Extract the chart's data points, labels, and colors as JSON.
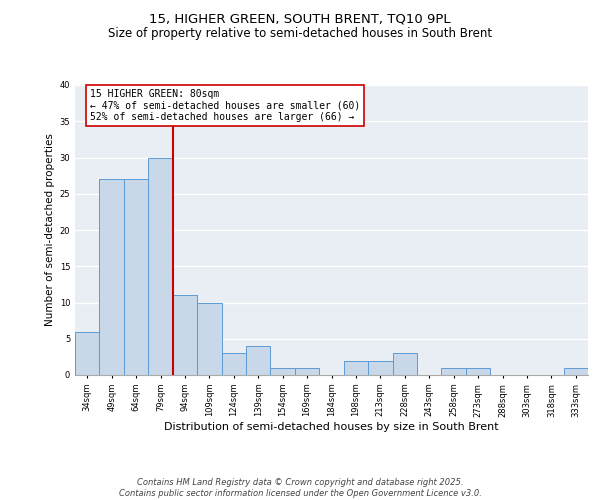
{
  "title": "15, HIGHER GREEN, SOUTH BRENT, TQ10 9PL",
  "subtitle": "Size of property relative to semi-detached houses in South Brent",
  "xlabel": "Distribution of semi-detached houses by size in South Brent",
  "ylabel": "Number of semi-detached properties",
  "categories": [
    "34sqm",
    "49sqm",
    "64sqm",
    "79sqm",
    "94sqm",
    "109sqm",
    "124sqm",
    "139sqm",
    "154sqm",
    "169sqm",
    "184sqm",
    "198sqm",
    "213sqm",
    "228sqm",
    "243sqm",
    "258sqm",
    "273sqm",
    "288sqm",
    "303sqm",
    "318sqm",
    "333sqm"
  ],
  "values": [
    6,
    27,
    27,
    30,
    11,
    10,
    3,
    4,
    1,
    1,
    0,
    2,
    2,
    3,
    0,
    1,
    1,
    0,
    0,
    0,
    1
  ],
  "bar_color": "#c8d8e8",
  "bar_edge_color": "#5b9bd5",
  "vline_color": "#cc0000",
  "annotation_text": "15 HIGHER GREEN: 80sqm\n← 47% of semi-detached houses are smaller (60)\n52% of semi-detached houses are larger (66) →",
  "annotation_box_color": "#cc0000",
  "ylim": [
    0,
    40
  ],
  "yticks": [
    0,
    5,
    10,
    15,
    20,
    25,
    30,
    35,
    40
  ],
  "background_color": "#e8eef4",
  "grid_color": "#ffffff",
  "footer_text": "Contains HM Land Registry data © Crown copyright and database right 2025.\nContains public sector information licensed under the Open Government Licence v3.0.",
  "title_fontsize": 9.5,
  "subtitle_fontsize": 8.5,
  "ylabel_fontsize": 7.5,
  "xlabel_fontsize": 8,
  "tick_fontsize": 6,
  "annot_fontsize": 7,
  "footer_fontsize": 6
}
